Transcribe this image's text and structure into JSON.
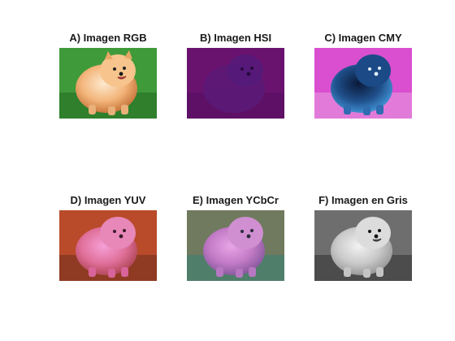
{
  "figure": {
    "panels": [
      {
        "title": "A) Imagen RGB",
        "variant": "rgb"
      },
      {
        "title": "B) Imagen HSI",
        "variant": "hsi"
      },
      {
        "title": "C) Imagen CMY",
        "variant": "cmy"
      },
      {
        "title": "D) Imagen YUV",
        "variant": "yuv"
      },
      {
        "title": "E) Imagen YCbCr",
        "variant": "ycbcr"
      },
      {
        "title": "F) Imagen en Gris",
        "variant": "gray"
      }
    ]
  }
}
